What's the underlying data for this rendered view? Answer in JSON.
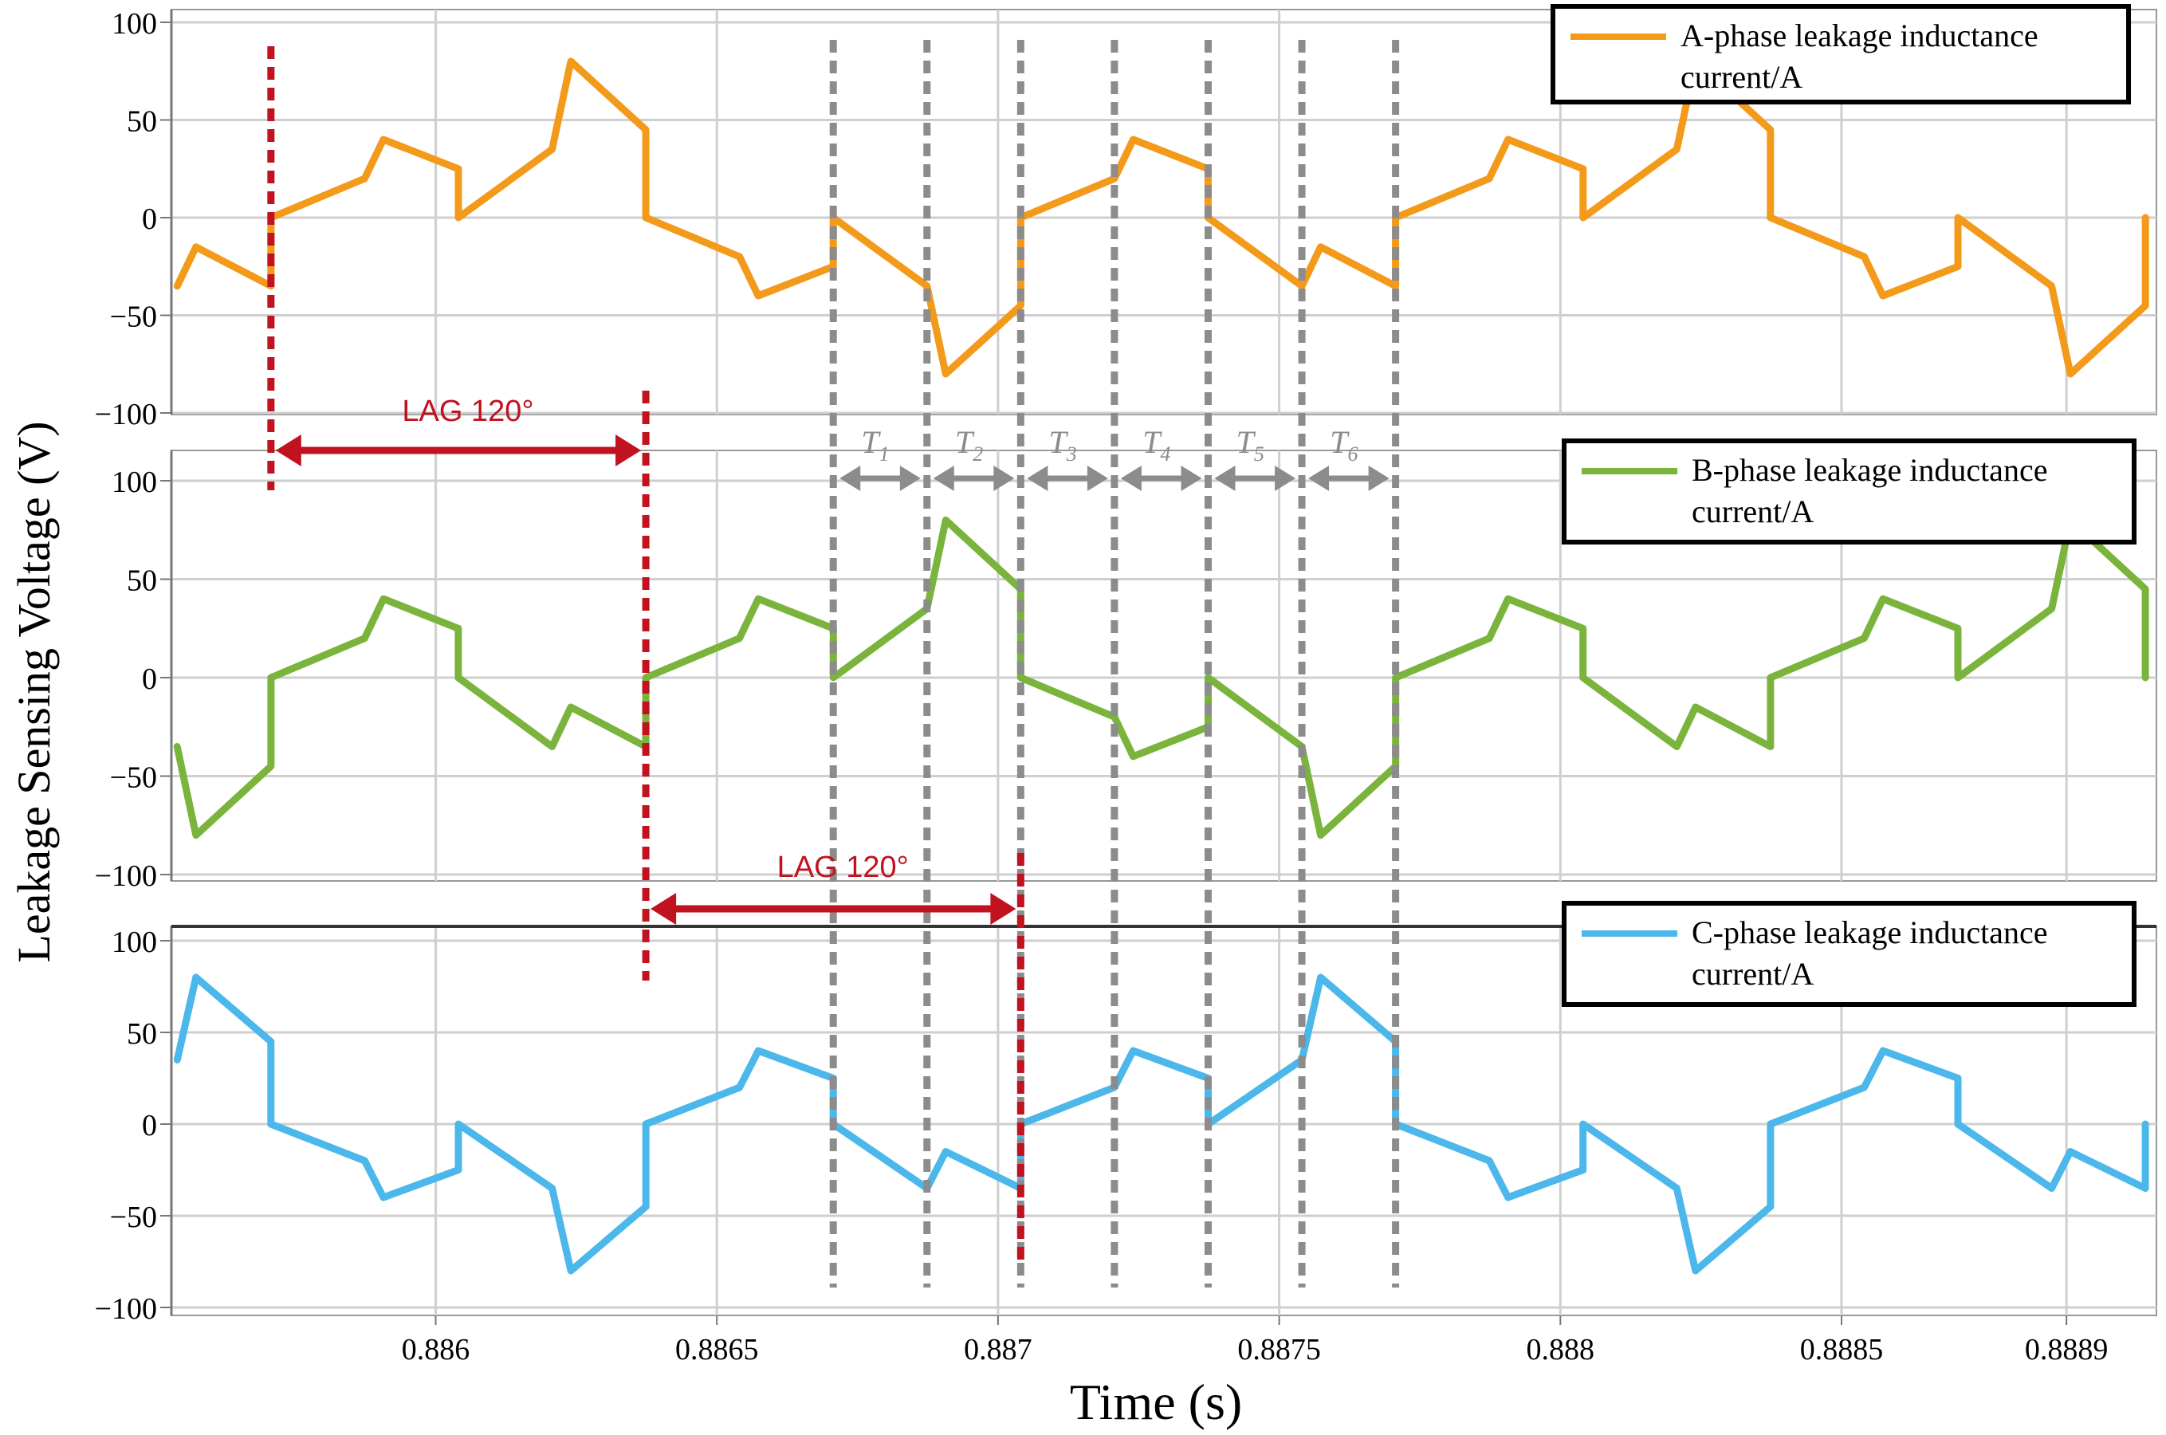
{
  "figure": {
    "ylabel": "Leakage Sensing Voltage (V)",
    "xlabel": "Time (s)",
    "colors": {
      "phase_a": "#F39A1B",
      "phase_b": "#7AB43C",
      "phase_c": "#4BB7EA",
      "lag_marker": "#C1121F",
      "interval_marker": "#8C8C8C",
      "grid": "#CFCFCF",
      "axis": "#777777"
    }
  },
  "annotations": {
    "lag_ab": "LAG 120°",
    "lag_bc": "LAG 120°",
    "intervals": [
      {
        "name": "T",
        "sub": "1"
      },
      {
        "name": "T",
        "sub": "2"
      },
      {
        "name": "T",
        "sub": "3"
      },
      {
        "name": "T",
        "sub": "4"
      },
      {
        "name": "T",
        "sub": "5"
      },
      {
        "name": "T",
        "sub": "6"
      }
    ]
  },
  "chart_data": [
    {
      "type": "line",
      "series": [
        {
          "name": "A-phase leakage inductance current/A",
          "legend_lines": [
            "A-phase leakage inductance",
            "current/A"
          ],
          "color": "#F39A1B"
        }
      ],
      "xlim": [
        0.88553,
        0.88906
      ],
      "ylim": [
        -100,
        100
      ],
      "yticks": [
        100,
        50,
        0,
        -50,
        -100
      ],
      "xticks": [],
      "phase_shift_deg": 0,
      "period_s": 0.002,
      "waveform_one_period": {
        "phase_frac": [
          0,
          0.0833,
          0.1,
          0.1667,
          0.1667,
          0.25,
          0.2667,
          0.3333,
          0.3333,
          0.4167,
          0.4333,
          0.5,
          0.5,
          0.5833,
          0.6,
          0.6667,
          0.6667,
          0.75,
          0.7667,
          0.8333,
          0.8333,
          0.9167,
          0.9333,
          1.0
        ],
        "value": [
          0,
          20,
          40,
          25,
          0,
          35,
          80,
          45,
          0,
          -20,
          -40,
          -25,
          0,
          -35,
          -80,
          -45,
          0,
          20,
          40,
          25,
          0,
          -35,
          -15,
          -35
        ]
      }
    },
    {
      "type": "line",
      "series": [
        {
          "name": "B-phase leakage inductance current/A",
          "legend_lines": [
            "B-phase leakage inductance",
            "current/A"
          ],
          "color": "#7AB43C"
        }
      ],
      "xlim": [
        0.88553,
        0.88906
      ],
      "ylim": [
        -100,
        100
      ],
      "yticks": [
        100,
        50,
        0,
        -50,
        -100
      ],
      "xticks": [],
      "phase_shift_deg": -120,
      "period_s": 0.002
    },
    {
      "type": "line",
      "series": [
        {
          "name": "C-phase leakage inductance current/A",
          "legend_lines": [
            "C-phase leakage inductance",
            "current/A"
          ],
          "color": "#4BB7EA"
        }
      ],
      "xlim": [
        0.88553,
        0.88906
      ],
      "ylim": [
        -100,
        100
      ],
      "yticks": [
        100,
        50,
        0,
        -50,
        -100
      ],
      "xticks": [
        0.886,
        0.8865,
        0.887,
        0.8875,
        0.888,
        0.8885,
        0.8889
      ],
      "xtick_labels": [
        "0.886",
        "0.8865",
        "0.887",
        "0.8875",
        "0.888",
        "0.8885",
        "0.8889"
      ],
      "phase_shift_deg": -240,
      "period_s": 0.002
    }
  ]
}
